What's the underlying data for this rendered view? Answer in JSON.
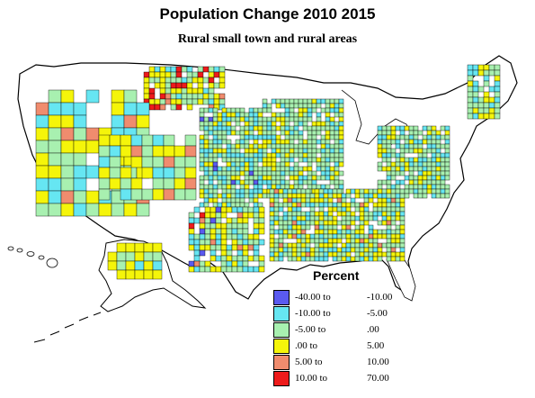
{
  "title": "Population Change 2010 2015",
  "subtitle": "Rural small town and rural  areas",
  "legend": {
    "title": "Percent",
    "items": [
      {
        "from": "-40.00 to",
        "to": "-10.00",
        "color": "#5a5af0"
      },
      {
        "from": "-10.00 to",
        "to": "-5.00",
        "color": "#66e6f2"
      },
      {
        "from": "-5.00 to",
        "to": ".00",
        "color": "#a8f0b0"
      },
      {
        "from": ".00 to",
        "to": "5.00",
        "color": "#f5f50a"
      },
      {
        "from": "5.00 to",
        "to": "10.00",
        "color": "#f08c6e"
      },
      {
        "from": "10.00 to",
        "to": "70.00",
        "color": "#ee1b1b"
      }
    ]
  },
  "colors": {
    "neg40": "#5a5af0",
    "neg10": "#66e6f2",
    "neg5": "#a8f0b0",
    "zero": "#f5f50a",
    "pos5": "#f08c6e",
    "pos10": "#ee1b1b",
    "outline": "#000000",
    "land": "#ffffff"
  }
}
